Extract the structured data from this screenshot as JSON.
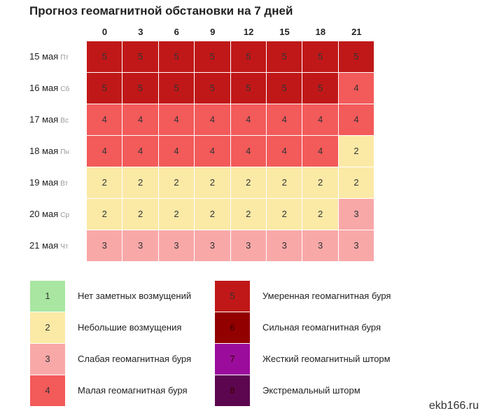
{
  "title": "Прогноз геомагнитной обстановки на 7 дней",
  "hours": [
    "0",
    "3",
    "6",
    "9",
    "12",
    "15",
    "18",
    "21"
  ],
  "days": [
    {
      "date": "15 мая",
      "weekday": "Пт",
      "values": [
        5,
        5,
        5,
        5,
        5,
        5,
        5,
        5
      ]
    },
    {
      "date": "16 мая",
      "weekday": "Сб",
      "values": [
        5,
        5,
        5,
        5,
        5,
        5,
        5,
        4
      ]
    },
    {
      "date": "17 мая",
      "weekday": "Вс",
      "values": [
        4,
        4,
        4,
        4,
        4,
        4,
        4,
        4
      ]
    },
    {
      "date": "18 мая",
      "weekday": "Пн",
      "values": [
        4,
        4,
        4,
        4,
        4,
        4,
        4,
        2
      ]
    },
    {
      "date": "19 мая",
      "weekday": "Вт",
      "values": [
        2,
        2,
        2,
        2,
        2,
        2,
        2,
        2
      ]
    },
    {
      "date": "20 мая",
      "weekday": "Ср",
      "values": [
        2,
        2,
        2,
        2,
        2,
        2,
        2,
        3
      ]
    },
    {
      "date": "21 мая",
      "weekday": "Чт",
      "values": [
        3,
        3,
        3,
        3,
        3,
        3,
        3,
        3
      ]
    }
  ],
  "legend": [
    {
      "level": "1",
      "label": "Нет заметных возмущений",
      "color": "#a8e6a1"
    },
    {
      "level": "2",
      "label": "Небольшие возмущения",
      "color": "#fbe9a6"
    },
    {
      "level": "3",
      "label": "Слабая геомагнитная буря",
      "color": "#f9a8a8"
    },
    {
      "level": "4",
      "label": "Малая геомагнитная буря",
      "color": "#f35a5a"
    },
    {
      "level": "5",
      "label": "Умеренная геомагнитная буря",
      "color": "#c01818"
    },
    {
      "level": "6",
      "label": "Сильная геомагнитная буря",
      "color": "#930000"
    },
    {
      "level": "7",
      "label": "Жесткий геомагнитный шторм",
      "color": "#9c0c9c"
    },
    {
      "level": "8",
      "label": "Экстремальный шторм",
      "color": "#5c0650"
    }
  ],
  "watermark": "ekb166.ru"
}
